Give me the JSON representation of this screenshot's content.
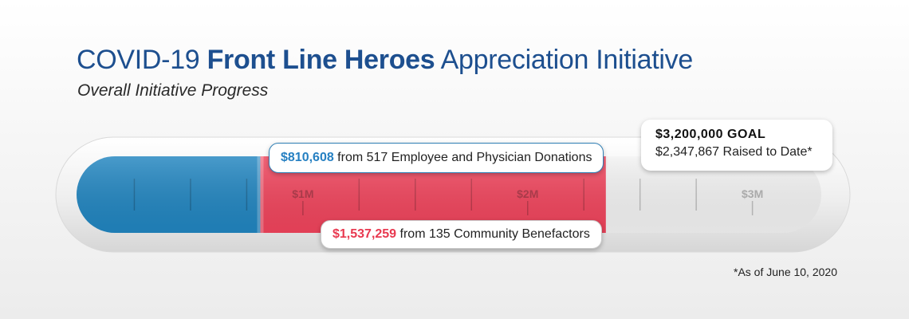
{
  "header": {
    "title_prefix": "COVID-19 ",
    "title_bold": "Front Line Heroes",
    "title_suffix": " Appreciation Initiative",
    "subtitle": "Overall Initiative Progress"
  },
  "chart_data": {
    "type": "bar",
    "orientation": "horizontal-stacked-progress",
    "axis": {
      "min": 0,
      "max": 3200000,
      "ticks": [
        1000000,
        2000000,
        3000000
      ],
      "tick_labels": [
        "$1M",
        "$2M",
        "$3M"
      ]
    },
    "segments": [
      {
        "name": "Employee and Physician Donations",
        "value": 810608,
        "color": "#2185c0"
      },
      {
        "name": "Community Benefactors",
        "value": 1537259,
        "color": "#f0445c"
      }
    ],
    "goal": 3200000,
    "total_raised": 2347867
  },
  "callouts": {
    "employee": {
      "amount": "$810,608",
      "text": " from 517 Employee and Physician Donations"
    },
    "community": {
      "amount": "$1,537,259",
      "text": " from 135 Community Benefactors"
    },
    "goal": {
      "line1": "$3,200,000 GOAL",
      "line2": "$2,347,867 Raised to Date*"
    }
  },
  "footnote": "*As of June 10, 2020"
}
